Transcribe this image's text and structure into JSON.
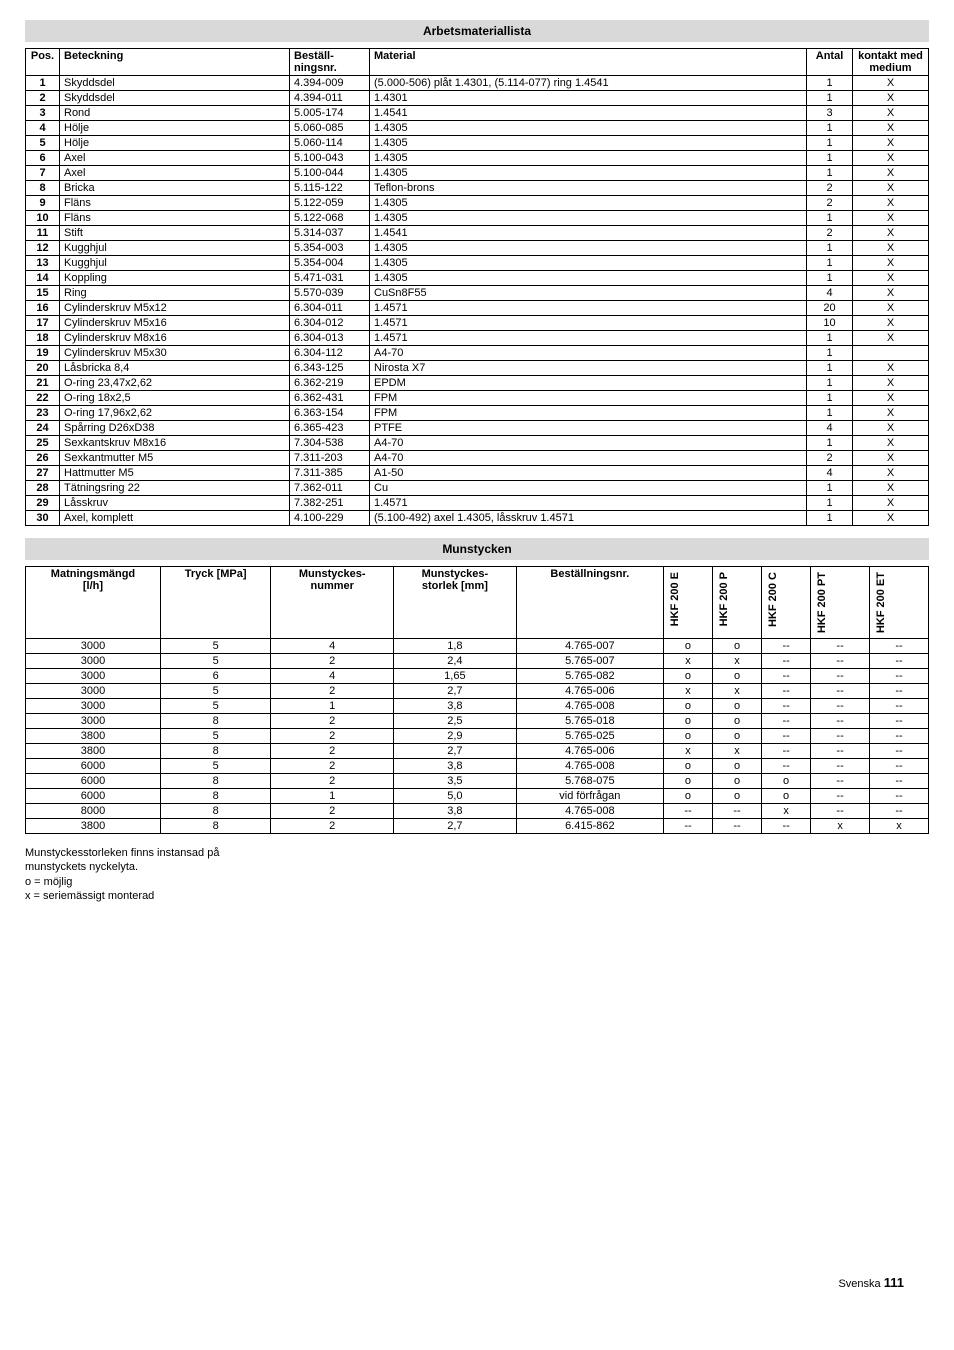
{
  "sections": {
    "arbets": {
      "title": "Arbetsmateriallista",
      "headers": [
        "Pos.",
        "Beteckning",
        "Beställ-\nningsnr.",
        "Material",
        "Antal",
        "kontakt med\nmedium"
      ],
      "rows": [
        [
          "1",
          "Skyddsdel",
          "4.394-009",
          "(5.000-506) plåt 1.4301, (5.114-077) ring 1.4541",
          "1",
          "X"
        ],
        [
          "2",
          "Skyddsdel",
          "4.394-011",
          "1.4301",
          "1",
          "X"
        ],
        [
          "3",
          "Rond",
          "5.005-174",
          "1.4541",
          "3",
          "X"
        ],
        [
          "4",
          "Hölje",
          "5.060-085",
          "1.4305",
          "1",
          "X"
        ],
        [
          "5",
          "Hölje",
          "5.060-114",
          "1.4305",
          "1",
          "X"
        ],
        [
          "6",
          "Axel",
          "5.100-043",
          "1.4305",
          "1",
          "X"
        ],
        [
          "7",
          "Axel",
          "5.100-044",
          "1.4305",
          "1",
          "X"
        ],
        [
          "8",
          "Bricka",
          "5.115-122",
          "Teflon-brons",
          "2",
          "X"
        ],
        [
          "9",
          "Fläns",
          "5.122-059",
          "1.4305",
          "2",
          "X"
        ],
        [
          "10",
          "Fläns",
          "5.122-068",
          "1.4305",
          "1",
          "X"
        ],
        [
          "11",
          "Stift",
          "5.314-037",
          "1.4541",
          "2",
          "X"
        ],
        [
          "12",
          "Kugghjul",
          "5.354-003",
          "1.4305",
          "1",
          "X"
        ],
        [
          "13",
          "Kugghjul",
          "5.354-004",
          "1.4305",
          "1",
          "X"
        ],
        [
          "14",
          "Koppling",
          "5.471-031",
          "1.4305",
          "1",
          "X"
        ],
        [
          "15",
          "Ring",
          "5.570-039",
          "CuSn8F55",
          "4",
          "X"
        ],
        [
          "16",
          "Cylinderskruv M5x12",
          "6.304-011",
          "1.4571",
          "20",
          "X"
        ],
        [
          "17",
          "Cylinderskruv M5x16",
          "6.304-012",
          "1.4571",
          "10",
          "X"
        ],
        [
          "18",
          "Cylinderskruv M8x16",
          "6.304-013",
          "1.4571",
          "1",
          "X"
        ],
        [
          "19",
          "Cylinderskruv M5x30",
          "6.304-112",
          "A4-70",
          "1",
          ""
        ],
        [
          "20",
          "Låsbricka 8,4",
          "6.343-125",
          "Nirosta X7",
          "1",
          "X"
        ],
        [
          "21",
          "O-ring 23,47x2,62",
          "6.362-219",
          "EPDM",
          "1",
          "X"
        ],
        [
          "22",
          "O-ring 18x2,5",
          "6.362-431",
          "FPM",
          "1",
          "X"
        ],
        [
          "23",
          "O-ring 17,96x2,62",
          "6.363-154",
          "FPM",
          "1",
          "X"
        ],
        [
          "24",
          "Spårring D26xD38",
          "6.365-423",
          "PTFE",
          "4",
          "X"
        ],
        [
          "25",
          "Sexkantskruv M8x16",
          "7.304-538",
          "A4-70",
          "1",
          "X"
        ],
        [
          "26",
          "Sexkantmutter M5",
          "7.311-203",
          "A4-70",
          "2",
          "X"
        ],
        [
          "27",
          "Hattmutter M5",
          "7.311-385",
          "A1-50",
          "4",
          "X"
        ],
        [
          "28",
          "Tätningsring 22",
          "7.362-011",
          "Cu",
          "1",
          "X"
        ],
        [
          "29",
          "Låsskruv",
          "7.382-251",
          "1.4571",
          "1",
          "X"
        ],
        [
          "30",
          "Axel, komplett",
          "4.100-229",
          "(5.100-492) axel 1.4305, låsskruv 1.4571",
          "1",
          "X"
        ]
      ]
    },
    "mun": {
      "title": "Munstycken",
      "headers": [
        "Matningsmängd\n[l/h]",
        "Tryck [MPa]",
        "Munstyckes-\nnummer",
        "Munstyckes-\nstorlek [mm]",
        "Beställningsnr.",
        "HKF 200 E",
        "HKF 200 P",
        "HKF 200 C",
        "HKF 200 PT",
        "HKF 200 ET"
      ],
      "rows": [
        [
          "3000",
          "5",
          "4",
          "1,8",
          "4.765-007",
          "o",
          "o",
          "--",
          "--",
          "--"
        ],
        [
          "3000",
          "5",
          "2",
          "2,4",
          "5.765-007",
          "x",
          "x",
          "--",
          "--",
          "--"
        ],
        [
          "3000",
          "6",
          "4",
          "1,65",
          "5.765-082",
          "o",
          "o",
          "--",
          "--",
          "--"
        ],
        [
          "3000",
          "5",
          "2",
          "2,7",
          "4.765-006",
          "x",
          "x",
          "--",
          "--",
          "--"
        ],
        [
          "3000",
          "5",
          "1",
          "3,8",
          "4.765-008",
          "o",
          "o",
          "--",
          "--",
          "--"
        ],
        [
          "3000",
          "8",
          "2",
          "2,5",
          "5.765-018",
          "o",
          "o",
          "--",
          "--",
          "--"
        ],
        [
          "3800",
          "5",
          "2",
          "2,9",
          "5.765-025",
          "o",
          "o",
          "--",
          "--",
          "--"
        ],
        [
          "3800",
          "8",
          "2",
          "2,7",
          "4.765-006",
          "x",
          "x",
          "--",
          "--",
          "--"
        ],
        [
          "6000",
          "5",
          "2",
          "3,8",
          "4.765-008",
          "o",
          "o",
          "--",
          "--",
          "--"
        ],
        [
          "6000",
          "8",
          "2",
          "3,5",
          "5.768-075",
          "o",
          "o",
          "o",
          "--",
          "--"
        ],
        [
          "6000",
          "8",
          "1",
          "5,0",
          "vid förfrågan",
          "o",
          "o",
          "o",
          "--",
          "--"
        ],
        [
          "8000",
          "8",
          "2",
          "3,8",
          "4.765-008",
          "--",
          "--",
          "x",
          "--",
          "--"
        ],
        [
          "3800",
          "8",
          "2",
          "2,7",
          "6.415-862",
          "--",
          "--",
          "--",
          "x",
          "x"
        ]
      ]
    }
  },
  "footnotes": [
    "Munstyckesstorleken finns instansad på",
    "munstyckets nyckelyta.",
    "o = möjlig",
    "x = seriemässigt monterad"
  ],
  "footer": {
    "lang": "Svenska",
    "page": "111"
  }
}
